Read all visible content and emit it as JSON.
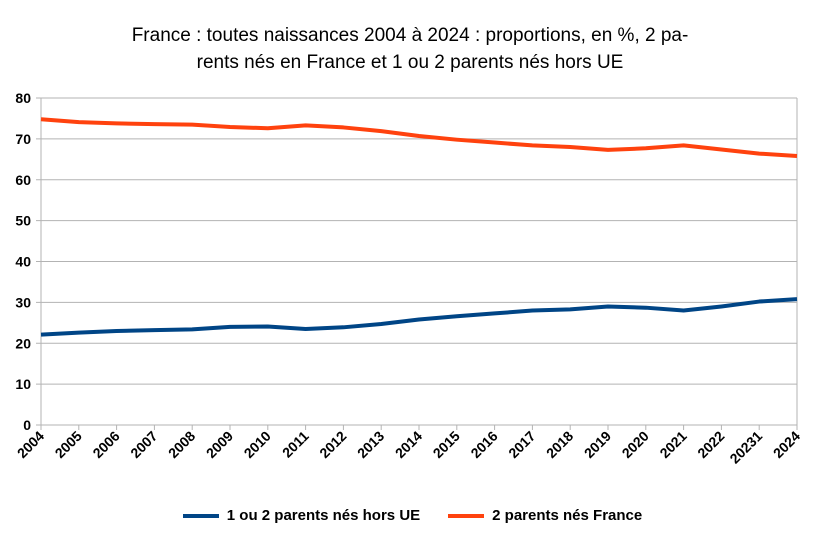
{
  "chart_data": {
    "type": "line",
    "title_line1": "France : toutes naissances 2004 à 2024 : proportions, en %, 2 pa-",
    "title_line2": "rents nés en France et 1 ou 2 parents nés hors UE",
    "categories": [
      "2004",
      "2005",
      "2006",
      "2007",
      "2008",
      "2009",
      "2010",
      "2011",
      "2012",
      "2013",
      "2014",
      "2015",
      "2016",
      "2017",
      "2018",
      "2019",
      "2020",
      "2021",
      "2022",
      "20231",
      "2024"
    ],
    "ylim": [
      0,
      80
    ],
    "yticks": [
      "0",
      "10",
      "20",
      "30",
      "40",
      "50",
      "60",
      "70",
      "80"
    ],
    "grid": true,
    "legend_position": "bottom",
    "series": [
      {
        "name": "1 ou 2 parents nés hors UE",
        "color": "#004586",
        "values": [
          22.1,
          22.6,
          23.0,
          23.2,
          23.4,
          24.0,
          24.1,
          23.5,
          23.9,
          24.7,
          25.8,
          26.6,
          27.3,
          28.0,
          28.3,
          29.0,
          28.7,
          28.0,
          29.0,
          30.2,
          30.8
        ]
      },
      {
        "name": "2 parents nés France",
        "color": "#ff420e",
        "values": [
          74.8,
          74.1,
          73.8,
          73.6,
          73.5,
          72.9,
          72.6,
          73.3,
          72.8,
          71.9,
          70.7,
          69.8,
          69.1,
          68.4,
          68.0,
          67.3,
          67.7,
          68.4,
          67.4,
          66.4,
          65.8
        ]
      }
    ]
  }
}
